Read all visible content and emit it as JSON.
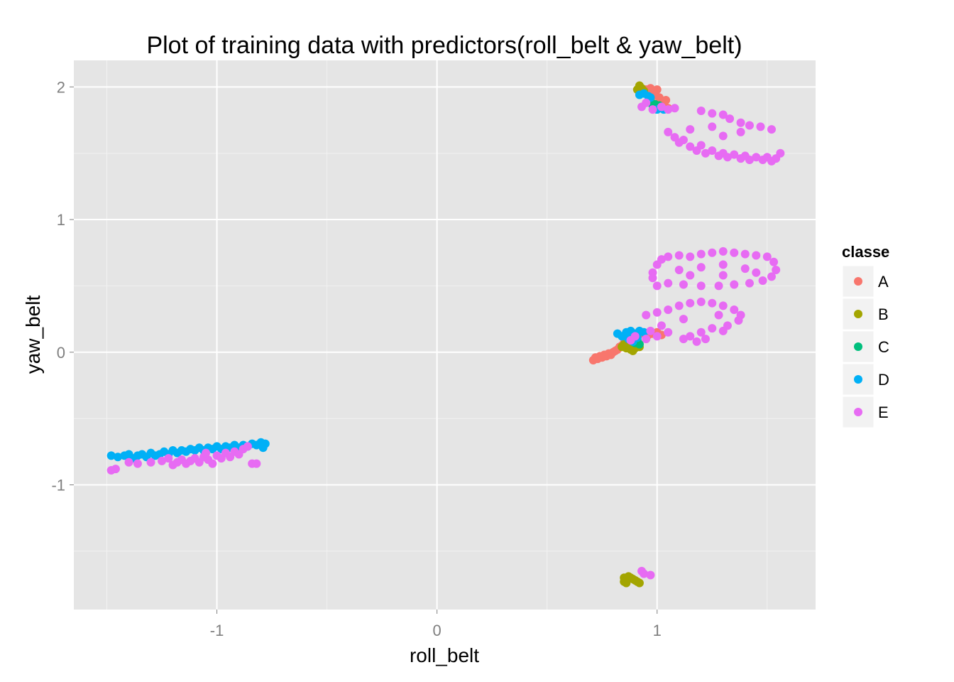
{
  "chart_data": {
    "type": "scatter",
    "title": "Plot of training data with predictors(roll_belt & yaw_belt)",
    "xlabel": "roll_belt",
    "ylabel": "yaw_belt",
    "xlim": [
      -1.65,
      1.72
    ],
    "ylim": [
      -1.94,
      2.2
    ],
    "x_ticks": [
      {
        "value": -1,
        "label": "-1"
      },
      {
        "value": 0,
        "label": "0"
      },
      {
        "value": 1,
        "label": "1"
      }
    ],
    "y_ticks": [
      {
        "value": -1,
        "label": "-1"
      },
      {
        "value": 0,
        "label": "0"
      },
      {
        "value": 1,
        "label": "1"
      },
      {
        "value": 2,
        "label": "2"
      }
    ],
    "grid": true,
    "legend": {
      "title": "classe",
      "position": "right"
    },
    "series": [
      {
        "name": "A",
        "color": "#F8766D",
        "points": [
          [
            0.71,
            -0.06
          ],
          [
            0.72,
            -0.04
          ],
          [
            0.73,
            -0.05
          ],
          [
            0.74,
            -0.03
          ],
          [
            0.75,
            -0.04
          ],
          [
            0.76,
            -0.02
          ],
          [
            0.77,
            -0.03
          ],
          [
            0.78,
            -0.01
          ],
          [
            0.79,
            -0.02
          ],
          [
            0.8,
            0.0
          ],
          [
            0.81,
            0.01
          ],
          [
            0.82,
            0.02
          ],
          [
            0.83,
            0.04
          ],
          [
            0.84,
            0.05
          ],
          [
            0.85,
            0.07
          ],
          [
            0.86,
            0.08
          ],
          [
            0.87,
            0.1
          ],
          [
            0.88,
            0.11
          ],
          [
            0.9,
            0.12
          ],
          [
            0.92,
            0.14
          ],
          [
            0.94,
            0.14
          ],
          [
            0.96,
            0.13
          ],
          [
            0.98,
            0.14
          ],
          [
            1.0,
            0.15
          ],
          [
            1.02,
            0.13
          ],
          [
            0.95,
            1.98
          ],
          [
            0.96,
            1.96
          ],
          [
            0.97,
            1.99
          ],
          [
            0.98,
            1.93
          ],
          [
            0.99,
            1.95
          ],
          [
            1.0,
            1.98
          ],
          [
            1.01,
            1.92
          ],
          [
            1.02,
            1.88
          ],
          [
            1.03,
            1.85
          ],
          [
            1.04,
            1.9
          ],
          [
            1.0,
            1.86
          ],
          [
            0.97,
            1.9
          ],
          [
            1.05,
            1.84
          ]
        ]
      },
      {
        "name": "B",
        "color": "#A3A500",
        "points": [
          [
            0.84,
            0.04
          ],
          [
            0.85,
            0.06
          ],
          [
            0.86,
            0.03
          ],
          [
            0.87,
            0.05
          ],
          [
            0.88,
            0.02
          ],
          [
            0.89,
            0.01
          ],
          [
            0.9,
            0.03
          ],
          [
            0.91,
            0.05
          ],
          [
            0.92,
            0.04
          ],
          [
            0.91,
            1.98
          ],
          [
            0.92,
            2.01
          ],
          [
            0.93,
            1.99
          ],
          [
            0.94,
            1.97
          ],
          [
            0.85,
            -1.7
          ],
          [
            0.86,
            -1.72
          ],
          [
            0.87,
            -1.69
          ],
          [
            0.88,
            -1.7
          ],
          [
            0.89,
            -1.71
          ],
          [
            0.9,
            -1.72
          ],
          [
            0.91,
            -1.73
          ],
          [
            0.92,
            -1.74
          ],
          [
            0.85,
            -1.73
          ],
          [
            0.86,
            -1.74
          ]
        ]
      },
      {
        "name": "C",
        "color": "#00BF7D",
        "points": [
          [
            0.98,
            1.86
          ],
          [
            0.99,
            1.87
          ],
          [
            1.0,
            1.85
          ],
          [
            1.01,
            1.86
          ],
          [
            1.02,
            1.84
          ],
          [
            0.9,
            0.07
          ],
          [
            0.91,
            0.09
          ],
          [
            0.92,
            0.06
          ]
        ]
      },
      {
        "name": "D",
        "color": "#00B0F6",
        "points": [
          [
            -1.48,
            -0.78
          ],
          [
            -1.45,
            -0.79
          ],
          [
            -1.42,
            -0.78
          ],
          [
            -1.4,
            -0.77
          ],
          [
            -1.38,
            -0.8
          ],
          [
            -1.36,
            -0.78
          ],
          [
            -1.34,
            -0.77
          ],
          [
            -1.32,
            -0.79
          ],
          [
            -1.3,
            -0.76
          ],
          [
            -1.28,
            -0.78
          ],
          [
            -1.26,
            -0.77
          ],
          [
            -1.24,
            -0.75
          ],
          [
            -1.22,
            -0.77
          ],
          [
            -1.2,
            -0.74
          ],
          [
            -1.18,
            -0.76
          ],
          [
            -1.16,
            -0.74
          ],
          [
            -1.14,
            -0.75
          ],
          [
            -1.12,
            -0.73
          ],
          [
            -1.1,
            -0.74
          ],
          [
            -1.08,
            -0.72
          ],
          [
            -1.06,
            -0.74
          ],
          [
            -1.04,
            -0.72
          ],
          [
            -1.02,
            -0.73
          ],
          [
            -1.0,
            -0.71
          ],
          [
            -0.98,
            -0.73
          ],
          [
            -0.96,
            -0.71
          ],
          [
            -0.94,
            -0.72
          ],
          [
            -0.92,
            -0.7
          ],
          [
            -0.9,
            -0.72
          ],
          [
            -0.88,
            -0.7
          ],
          [
            -0.86,
            -0.71
          ],
          [
            -0.84,
            -0.69
          ],
          [
            -0.82,
            -0.7
          ],
          [
            -0.8,
            -0.68
          ],
          [
            -0.79,
            -0.72
          ],
          [
            -0.78,
            -0.69
          ],
          [
            0.82,
            0.14
          ],
          [
            0.84,
            0.12
          ],
          [
            0.86,
            0.15
          ],
          [
            0.88,
            0.16
          ],
          [
            0.9,
            0.14
          ],
          [
            0.92,
            0.16
          ],
          [
            0.94,
            0.15
          ],
          [
            0.87,
            0.1
          ],
          [
            0.89,
            0.08
          ],
          [
            0.91,
            0.11
          ],
          [
            0.92,
            1.94
          ],
          [
            0.94,
            1.95
          ],
          [
            0.96,
            1.93
          ],
          [
            0.97,
            1.92
          ],
          [
            1.0,
            1.83
          ],
          [
            1.03,
            1.83
          ]
        ]
      },
      {
        "name": "E",
        "color": "#E76BF3",
        "points": [
          [
            -1.48,
            -0.89
          ],
          [
            -1.46,
            -0.88
          ],
          [
            -1.4,
            -0.83
          ],
          [
            -1.36,
            -0.84
          ],
          [
            -1.3,
            -0.83
          ],
          [
            -1.25,
            -0.82
          ],
          [
            -1.2,
            -0.85
          ],
          [
            -1.18,
            -0.83
          ],
          [
            -1.16,
            -0.81
          ],
          [
            -1.14,
            -0.84
          ],
          [
            -1.12,
            -0.82
          ],
          [
            -1.1,
            -0.8
          ],
          [
            -1.08,
            -0.83
          ],
          [
            -1.06,
            -0.79
          ],
          [
            -1.04,
            -0.81
          ],
          [
            -1.02,
            -0.84
          ],
          [
            -1.0,
            -0.78
          ],
          [
            -0.98,
            -0.8
          ],
          [
            -0.96,
            -0.76
          ],
          [
            -0.94,
            -0.79
          ],
          [
            -0.92,
            -0.75
          ],
          [
            -0.9,
            -0.77
          ],
          [
            -0.88,
            -0.73
          ],
          [
            -0.86,
            -0.71
          ],
          [
            -0.84,
            -0.84
          ],
          [
            -0.82,
            -0.84
          ],
          [
            -1.22,
            -0.8
          ],
          [
            -1.05,
            -0.76
          ],
          [
            0.93,
            1.85
          ],
          [
            0.95,
            1.88
          ],
          [
            0.98,
            1.83
          ],
          [
            1.02,
            1.85
          ],
          [
            1.05,
            1.83
          ],
          [
            1.08,
            1.84
          ],
          [
            1.05,
            1.66
          ],
          [
            1.08,
            1.62
          ],
          [
            1.1,
            1.58
          ],
          [
            1.12,
            1.6
          ],
          [
            1.15,
            1.55
          ],
          [
            1.18,
            1.52
          ],
          [
            1.2,
            1.56
          ],
          [
            1.22,
            1.5
          ],
          [
            1.25,
            1.52
          ],
          [
            1.28,
            1.48
          ],
          [
            1.3,
            1.5
          ],
          [
            1.32,
            1.47
          ],
          [
            1.35,
            1.49
          ],
          [
            1.38,
            1.46
          ],
          [
            1.4,
            1.48
          ],
          [
            1.42,
            1.45
          ],
          [
            1.45,
            1.47
          ],
          [
            1.48,
            1.45
          ],
          [
            1.5,
            1.47
          ],
          [
            1.52,
            1.44
          ],
          [
            1.54,
            1.46
          ],
          [
            1.56,
            1.5
          ],
          [
            1.2,
            1.82
          ],
          [
            1.25,
            1.8
          ],
          [
            1.3,
            1.79
          ],
          [
            1.33,
            1.76
          ],
          [
            1.38,
            1.73
          ],
          [
            1.42,
            1.71
          ],
          [
            1.47,
            1.7
          ],
          [
            1.52,
            1.68
          ],
          [
            1.3,
            1.63
          ],
          [
            1.38,
            1.66
          ],
          [
            1.15,
            1.68
          ],
          [
            1.25,
            1.7
          ],
          [
            0.98,
            0.6
          ],
          [
            1.0,
            0.66
          ],
          [
            1.02,
            0.7
          ],
          [
            1.05,
            0.72
          ],
          [
            1.1,
            0.73
          ],
          [
            1.15,
            0.72
          ],
          [
            1.2,
            0.74
          ],
          [
            1.25,
            0.75
          ],
          [
            1.3,
            0.76
          ],
          [
            1.35,
            0.75
          ],
          [
            1.4,
            0.74
          ],
          [
            1.45,
            0.73
          ],
          [
            1.5,
            0.72
          ],
          [
            1.53,
            0.68
          ],
          [
            1.54,
            0.62
          ],
          [
            1.52,
            0.57
          ],
          [
            1.48,
            0.54
          ],
          [
            1.42,
            0.52
          ],
          [
            1.35,
            0.51
          ],
          [
            1.28,
            0.5
          ],
          [
            1.2,
            0.5
          ],
          [
            1.12,
            0.51
          ],
          [
            1.05,
            0.52
          ],
          [
            1.0,
            0.5
          ],
          [
            0.98,
            0.56
          ],
          [
            1.1,
            0.62
          ],
          [
            1.2,
            0.64
          ],
          [
            1.3,
            0.66
          ],
          [
            1.4,
            0.63
          ],
          [
            1.3,
            0.58
          ],
          [
            1.15,
            0.58
          ],
          [
            1.45,
            0.6
          ],
          [
            0.95,
            0.28
          ],
          [
            1.0,
            0.3
          ],
          [
            1.05,
            0.32
          ],
          [
            1.1,
            0.35
          ],
          [
            1.15,
            0.37
          ],
          [
            1.2,
            0.38
          ],
          [
            1.25,
            0.37
          ],
          [
            1.3,
            0.35
          ],
          [
            1.35,
            0.32
          ],
          [
            1.38,
            0.28
          ],
          [
            1.37,
            0.24
          ],
          [
            1.32,
            0.2
          ],
          [
            1.25,
            0.18
          ],
          [
            1.2,
            0.15
          ],
          [
            1.15,
            0.12
          ],
          [
            1.12,
            0.1
          ],
          [
            1.18,
            0.08
          ],
          [
            1.22,
            0.1
          ],
          [
            1.05,
            0.15
          ],
          [
            1.0,
            0.12
          ],
          [
            1.02,
            0.2
          ],
          [
            1.12,
            0.25
          ],
          [
            1.28,
            0.28
          ],
          [
            1.3,
            0.16
          ],
          [
            0.88,
            0.09
          ],
          [
            0.9,
            0.12
          ],
          [
            0.95,
            0.1
          ],
          [
            0.97,
            0.16
          ],
          [
            0.93,
            -1.65
          ],
          [
            0.94,
            -1.67
          ],
          [
            0.97,
            -1.68
          ]
        ]
      }
    ]
  }
}
